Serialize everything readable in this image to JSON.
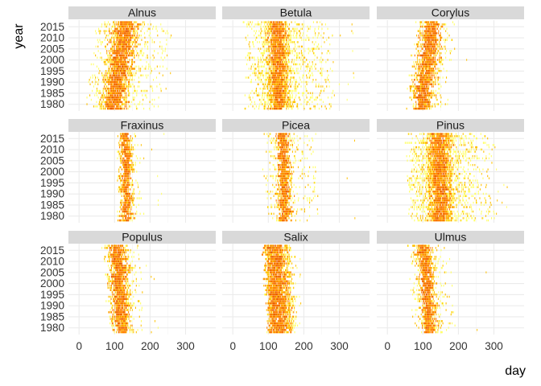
{
  "chart_data": {
    "type": "heatmap",
    "xlabel": "day",
    "ylabel": "year",
    "x_ticks": [
      0,
      100,
      200,
      300
    ],
    "y_ticks": [
      1980,
      1985,
      1990,
      1995,
      2000,
      2005,
      2010,
      2015
    ],
    "xlim": [
      -30,
      385
    ],
    "ylim": [
      1977,
      2018
    ],
    "grid": true,
    "legend": "none",
    "colors": {
      "low": "#FFFF66",
      "mid": "#FFC000",
      "high": "#FF7F00",
      "peak": "#E85D00"
    },
    "panels": [
      {
        "name": "Alnus",
        "center_start": 95,
        "center_end": 130,
        "core_width": 40,
        "spread": 130,
        "tail": 260,
        "density": 0.55
      },
      {
        "name": "Betula",
        "center_start": 128,
        "center_end": 125,
        "core_width": 30,
        "spread": 150,
        "tail": 340,
        "density": 0.95
      },
      {
        "name": "Corylus",
        "center_start": 95,
        "center_end": 125,
        "core_width": 35,
        "spread": 70,
        "tail": 330,
        "density": 0.35
      },
      {
        "name": "Fraxinus",
        "center_start": 135,
        "center_end": 128,
        "core_width": 18,
        "spread": 40,
        "tail": 240,
        "density": 0.45
      },
      {
        "name": "Picea",
        "center_start": 145,
        "center_end": 140,
        "core_width": 22,
        "spread": 90,
        "tail": 350,
        "density": 0.4
      },
      {
        "name": "Pinus",
        "center_start": 148,
        "center_end": 145,
        "core_width": 35,
        "spread": 150,
        "tail": 345,
        "density": 0.95
      },
      {
        "name": "Populus",
        "center_start": 120,
        "center_end": 105,
        "core_width": 30,
        "spread": 60,
        "tail": 240,
        "density": 0.45
      },
      {
        "name": "Salix",
        "center_start": 130,
        "center_end": 115,
        "core_width": 40,
        "spread": 50,
        "tail": 200,
        "density": 0.85
      },
      {
        "name": "Ulmus",
        "center_start": 120,
        "center_end": 100,
        "core_width": 25,
        "spread": 70,
        "tail": 290,
        "density": 0.4
      }
    ]
  }
}
